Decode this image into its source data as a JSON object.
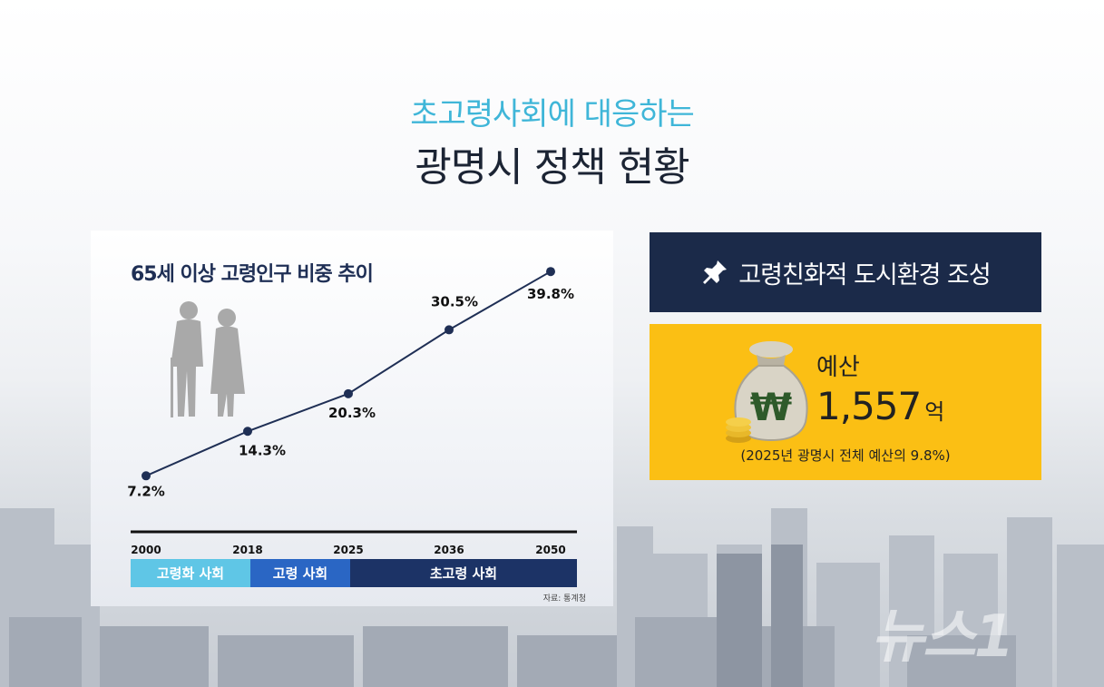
{
  "header": {
    "title_line1": "초고령사회에 대응하는",
    "title_line2": "광명시 정책 현황"
  },
  "chart_data": {
    "type": "line",
    "title": "65세 이상 고령인구 비중 추이",
    "categories": [
      "2000",
      "2018",
      "2025",
      "2036",
      "2050"
    ],
    "series": [
      {
        "values": [
          7.2,
          14.3,
          20.3,
          30.5,
          39.8
        ]
      }
    ],
    "data_labels": [
      "7.2%",
      "14.3%",
      "20.3%",
      "30.5%",
      "39.8%"
    ],
    "ylim": [
      0,
      42
    ],
    "grid": false,
    "color": "#1f2f55",
    "eras": [
      {
        "label": "고령화 사회",
        "color": "#5fc6e6"
      },
      {
        "label": "고령 사회",
        "color": "#2a66c4"
      },
      {
        "label": "초고령 사회",
        "color": "#1c3366"
      }
    ],
    "source": "자료: 통계청"
  },
  "policy": {
    "heading": "고령친화적 도시환경 조성",
    "pin_icon": "pushpin-icon",
    "budget_label": "예산",
    "budget_amount": "1,557",
    "budget_unit": "억",
    "budget_note": "(2025년 광명시 전체 예산의 9.8%)",
    "bag_icon": "money-bag-won-icon"
  },
  "watermark": "뉴스1"
}
